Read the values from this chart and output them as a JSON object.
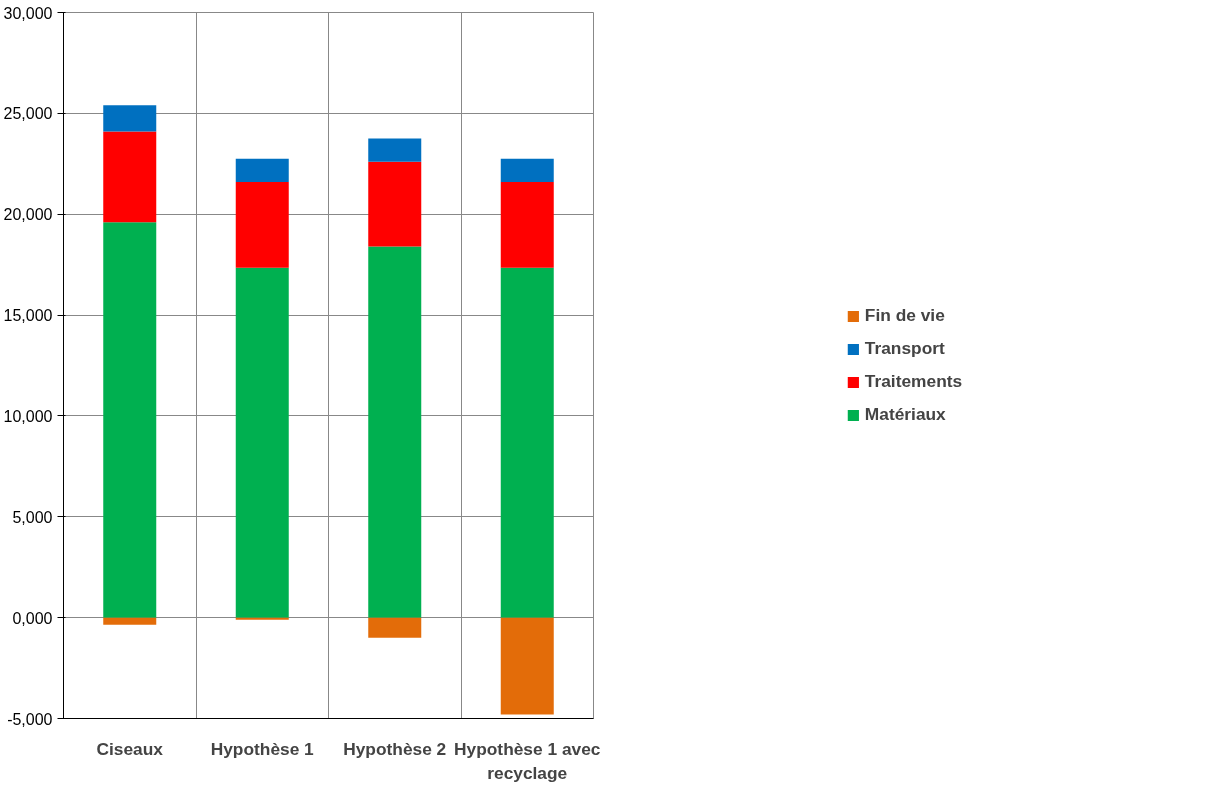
{
  "chart_data": {
    "type": "bar",
    "stacked": true,
    "categories": [
      "Ciseaux",
      "Hypothèse 1",
      "Hypothèse 2",
      "Hypothèse 1 avec recyclage"
    ],
    "series": [
      {
        "name": "Matériaux",
        "color": "#00b050",
        "values": [
          19600,
          17350,
          18400,
          17350
        ]
      },
      {
        "name": "Traitements",
        "color": "#ff0000",
        "values": [
          4500,
          4250,
          4200,
          4250
        ]
      },
      {
        "name": "Transport",
        "color": "#0070c0",
        "values": [
          1300,
          1150,
          1150,
          1150
        ]
      },
      {
        "name": "Fin de vie",
        "color": "#e36c09",
        "values": [
          -350,
          -100,
          -1000,
          -4800
        ]
      }
    ],
    "ylim": [
      -5000,
      30000
    ],
    "yticks": [
      {
        "value": -5000,
        "label": "-5,000"
      },
      {
        "value": 0,
        "label": "0,000"
      },
      {
        "value": 5000,
        "label": "5,000"
      },
      {
        "value": 10000,
        "label": "10,000"
      },
      {
        "value": 15000,
        "label": "15,000"
      },
      {
        "value": 20000,
        "label": "20,000"
      },
      {
        "value": 25000,
        "label": "25,000"
      },
      {
        "value": 30000,
        "label": "30,000"
      }
    ],
    "grid": true,
    "legend": "right"
  }
}
